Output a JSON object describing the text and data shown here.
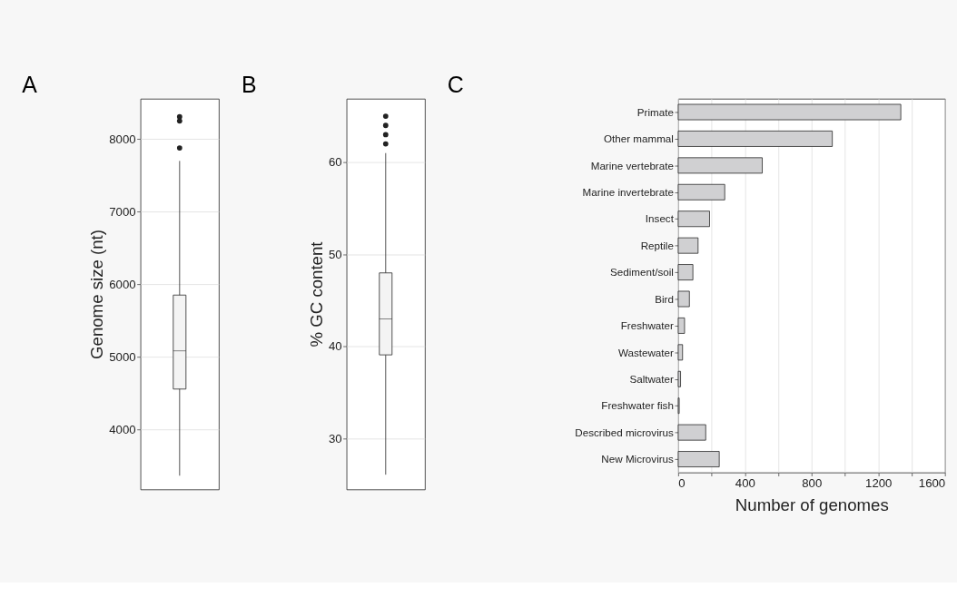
{
  "chart_data": [
    {
      "type": "box",
      "title": "A",
      "ylabel": "Genome size (nt)",
      "categories": [
        null
      ],
      "ylim": [
        3180,
        8556
      ],
      "yticks": [
        4000,
        5000,
        6000,
        7000,
        8000
      ],
      "grid": "y",
      "boxes": [
        {
          "low": 3369,
          "q1": 4561,
          "median": 5086,
          "q3": 5854,
          "high": 7700,
          "outliers": [
            7879,
            8250,
            8307
          ]
        }
      ]
    },
    {
      "type": "box",
      "title": "B",
      "ylabel": "% GC content",
      "categories": [
        null
      ],
      "ylim": [
        24.5,
        66.9
      ],
      "yticks": [
        30,
        40,
        50,
        60
      ],
      "grid": "y",
      "boxes": [
        {
          "low": 26.1,
          "q1": 39.1,
          "median": 43.0,
          "q3": 48.0,
          "high": 61.0,
          "outliers": [
            62.0,
            63.0,
            64.0,
            65.0
          ]
        }
      ]
    },
    {
      "type": "bar",
      "orientation": "horizontal",
      "title": "C",
      "xlabel": "Number of genomes",
      "grid": "x",
      "color": "#d0d0d2",
      "categories": [
        "Primate",
        "Other mammal",
        "Marine vertebrate",
        "Marine invertebrate",
        "Insect",
        "Reptile",
        "Sediment/soil",
        "Bird",
        "Freshwater",
        "Wastewater",
        "Saltwater",
        "Freshwater fish",
        "Described microvirus",
        "New Microvirus"
      ],
      "values": [
        1335,
        924,
        504,
        279,
        188,
        119,
        88,
        67,
        38,
        26,
        14,
        6,
        165,
        246
      ],
      "xlim": [
        0,
        1600
      ],
      "xticks": [
        0,
        {
          "value": 200,
          "label": null
        },
        400,
        {
          "value": 600,
          "label": null
        },
        800,
        {
          "value": 1000,
          "label": null
        },
        1200,
        {
          "value": 1400,
          "label": null
        },
        1600
      ]
    }
  ]
}
